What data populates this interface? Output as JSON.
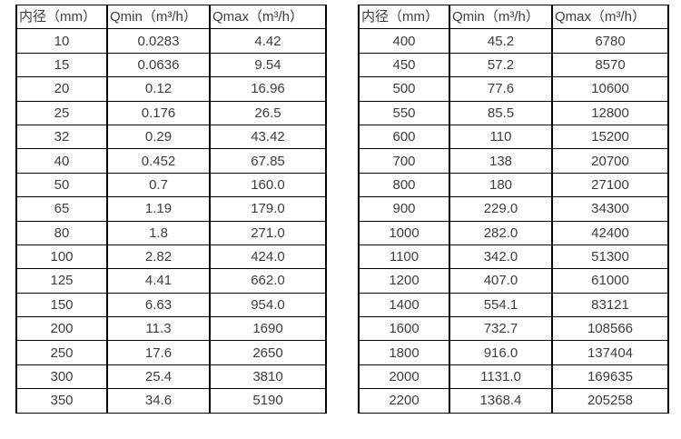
{
  "colors": {
    "text": "#3d3d3d",
    "border": "#000000",
    "background": "#ffffff"
  },
  "tables": [
    {
      "name": "flow-rate-table-small-diameters",
      "headers": [
        "内径（mm）",
        "Qmin（m³/h）",
        "Qmax（m³/h）"
      ],
      "rows": [
        [
          "10",
          "0.0283",
          "4.42"
        ],
        [
          "15",
          "0.0636",
          "9.54"
        ],
        [
          "20",
          "0.12",
          "16.96"
        ],
        [
          "25",
          "0.176",
          "26.5"
        ],
        [
          "32",
          "0.29",
          "43.42"
        ],
        [
          "40",
          "0.452",
          "67.85"
        ],
        [
          "50",
          "0.7",
          "160.0"
        ],
        [
          "65",
          "1.19",
          "179.0"
        ],
        [
          "80",
          "1.8",
          "271.0"
        ],
        [
          "100",
          "2.82",
          "424.0"
        ],
        [
          "125",
          "4.41",
          "662.0"
        ],
        [
          "150",
          "6.63",
          "954.0"
        ],
        [
          "200",
          "11.3",
          "1690"
        ],
        [
          "250",
          "17.6",
          "2650"
        ],
        [
          "300",
          "25.4",
          "3810"
        ],
        [
          "350",
          "34.6",
          "5190"
        ]
      ]
    },
    {
      "name": "flow-rate-table-large-diameters",
      "headers": [
        "内径（mm）",
        "Qmin（m³/h）",
        "Qmax（m³/h）"
      ],
      "rows": [
        [
          "400",
          "45.2",
          "6780"
        ],
        [
          "450",
          "57.2",
          "8570"
        ],
        [
          "500",
          "77.6",
          "10600"
        ],
        [
          "550",
          "85.5",
          "12800"
        ],
        [
          "600",
          "110",
          "15200"
        ],
        [
          "700",
          "138",
          "20700"
        ],
        [
          "800",
          "180",
          "27100"
        ],
        [
          "900",
          "229.0",
          "34300"
        ],
        [
          "1000",
          "282.0",
          "42400"
        ],
        [
          "1100",
          "342.0",
          "51300"
        ],
        [
          "1200",
          "407.0",
          "61000"
        ],
        [
          "1400",
          "554.1",
          "83121"
        ],
        [
          "1600",
          "732.7",
          "108566"
        ],
        [
          "1800",
          "916.0",
          "137404"
        ],
        [
          "2000",
          "1131.0",
          "169635"
        ],
        [
          "2200",
          "1368.4",
          "205258"
        ]
      ]
    }
  ]
}
